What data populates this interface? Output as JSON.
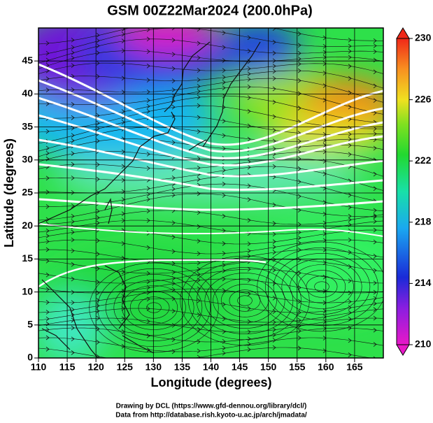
{
  "chart_data": {
    "type": "map",
    "title": "GSM 00Z22Mar2024 (200.0hPa)",
    "x_label": "Longitude (degrees)",
    "y_label": "Latitude  (degrees)",
    "xlim": [
      110,
      170
    ],
    "xticks": [
      110,
      115,
      120,
      125,
      130,
      135,
      140,
      145,
      150,
      155,
      160,
      165
    ],
    "ylim": [
      0,
      50
    ],
    "yticks": [
      0,
      5,
      10,
      15,
      20,
      25,
      30,
      35,
      40,
      45
    ],
    "grid": true,
    "colorbar": {
      "lim": [
        210,
        230
      ],
      "ticks": [
        210,
        214,
        218,
        222,
        226,
        230
      ]
    },
    "credits": [
      "Drawing by DCL (https://www.gfd-dennou.org/library/dcl/)",
      "Data from http://database.rish.kyoto-u.ac.jp/arch/jmadata/"
    ]
  }
}
